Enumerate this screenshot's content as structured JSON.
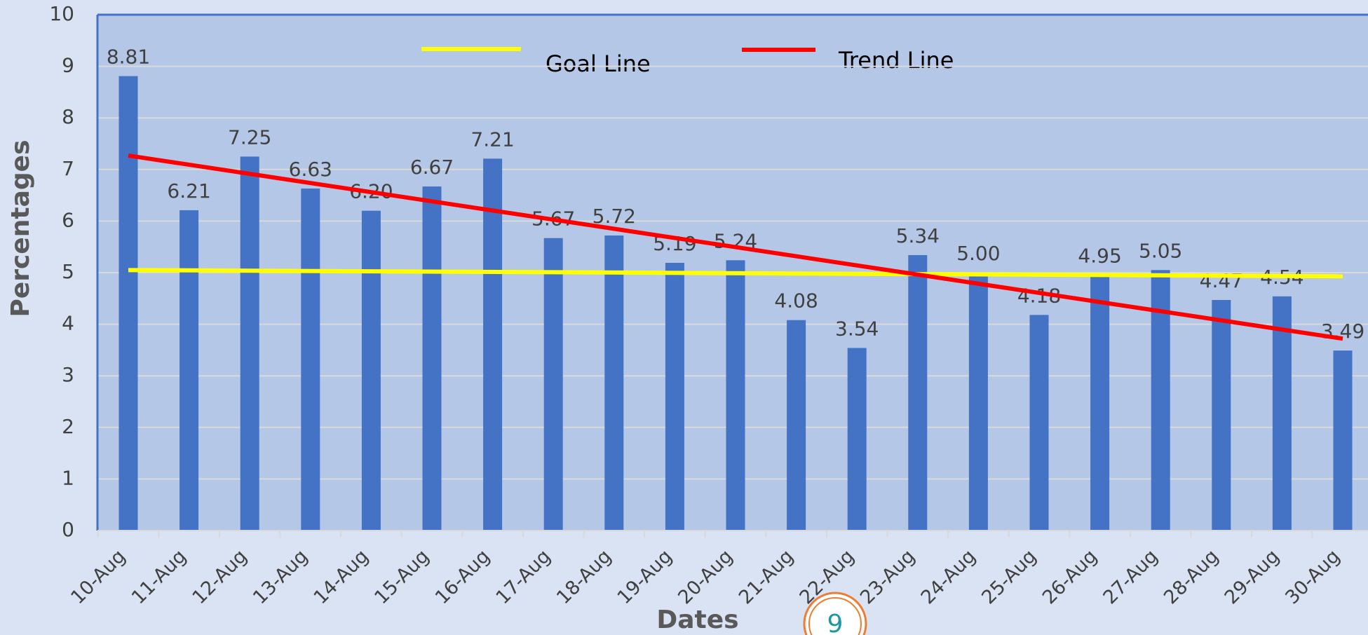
{
  "chart_data": {
    "type": "bar",
    "categories": [
      "10-Aug",
      "11-Aug",
      "12-Aug",
      "13-Aug",
      "14-Aug",
      "15-Aug",
      "16-Aug",
      "17-Aug",
      "18-Aug",
      "19-Aug",
      "20-Aug",
      "21-Aug",
      "22-Aug",
      "23-Aug",
      "24-Aug",
      "25-Aug",
      "26-Aug",
      "27-Aug",
      "28-Aug",
      "29-Aug",
      "30-Aug"
    ],
    "values": [
      8.81,
      6.21,
      7.25,
      6.63,
      6.2,
      6.67,
      7.21,
      5.67,
      5.72,
      5.19,
      5.24,
      4.08,
      3.54,
      5.34,
      5.0,
      4.18,
      4.95,
      5.05,
      4.47,
      4.54,
      3.49
    ],
    "value_labels": [
      "8.81",
      "6.21",
      "7.25",
      "6.63",
      "6.20",
      "6.67",
      "7.21",
      "5.67",
      "5.72",
      "5.19",
      "5.24",
      "4.08",
      "3.54",
      "5.34",
      "5.00",
      "4.18",
      "4.95",
      "5.05",
      "4.47",
      "4.54",
      "3.49"
    ],
    "color": "#4472c4",
    "lines": [
      {
        "name": "Goal Line",
        "color": "#ffff00",
        "values": [
          5.05,
          4.93
        ]
      },
      {
        "name": "Trend Line",
        "color": "#ff0000",
        "values": [
          7.27,
          3.72
        ]
      }
    ],
    "ylim": [
      0,
      10
    ],
    "yticks": [
      0,
      1,
      2,
      3,
      4,
      5,
      6,
      7,
      8,
      9,
      10
    ],
    "grid": true,
    "x_label": "Dates",
    "y_label": "Percentages",
    "page_number": "9"
  }
}
